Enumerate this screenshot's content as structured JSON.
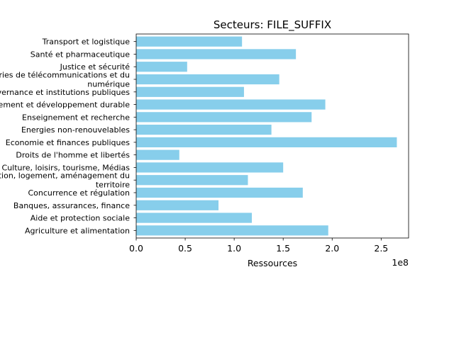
{
  "chart_data": {
    "type": "bar",
    "orientation": "horizontal",
    "title": "Secteurs: FILE_SUFFIX",
    "xlabel": "Ressources",
    "ylabel": "",
    "x_scale_label": "1e8",
    "x_scale": 100000000,
    "xlim": [
      0,
      278000000
    ],
    "x_ticks": [
      0,
      50000000,
      100000000,
      150000000,
      200000000,
      250000000
    ],
    "x_tick_labels": [
      "0.0",
      "0.5",
      "1.0",
      "1.5",
      "2.0",
      "2.5"
    ],
    "grid": false,
    "bar_color": "#87CEEB",
    "categories": [
      [
        "Agriculture et alimentation"
      ],
      [
        "Aide et protection sociale"
      ],
      [
        "Banques, assurances, finance"
      ],
      [
        "Concurrence et régulation"
      ],
      [
        "Construction, logement, aménagement du",
        "territoire"
      ],
      [
        "Culture, loisirs, tourisme, Médias"
      ],
      [
        "Droits de l'homme et libertés"
      ],
      [
        "Economie et finances publiques"
      ],
      [
        "Energies non-renouvelables"
      ],
      [
        "Enseignement et recherche"
      ],
      [
        "Environnement et développement durable"
      ],
      [
        "Gouvernance et institutions publiques"
      ],
      [
        "Industries de télécommunications et du",
        "numérique"
      ],
      [
        "Justice et sécurité"
      ],
      [
        "Santé et pharmaceutique"
      ],
      [
        "Transport et logistique"
      ]
    ],
    "values": [
      196000000,
      118000000,
      84000000,
      170000000,
      114000000,
      150000000,
      44000000,
      266000000,
      138000000,
      179000000,
      193000000,
      110000000,
      146000000,
      52000000,
      163000000,
      108000000
    ]
  }
}
